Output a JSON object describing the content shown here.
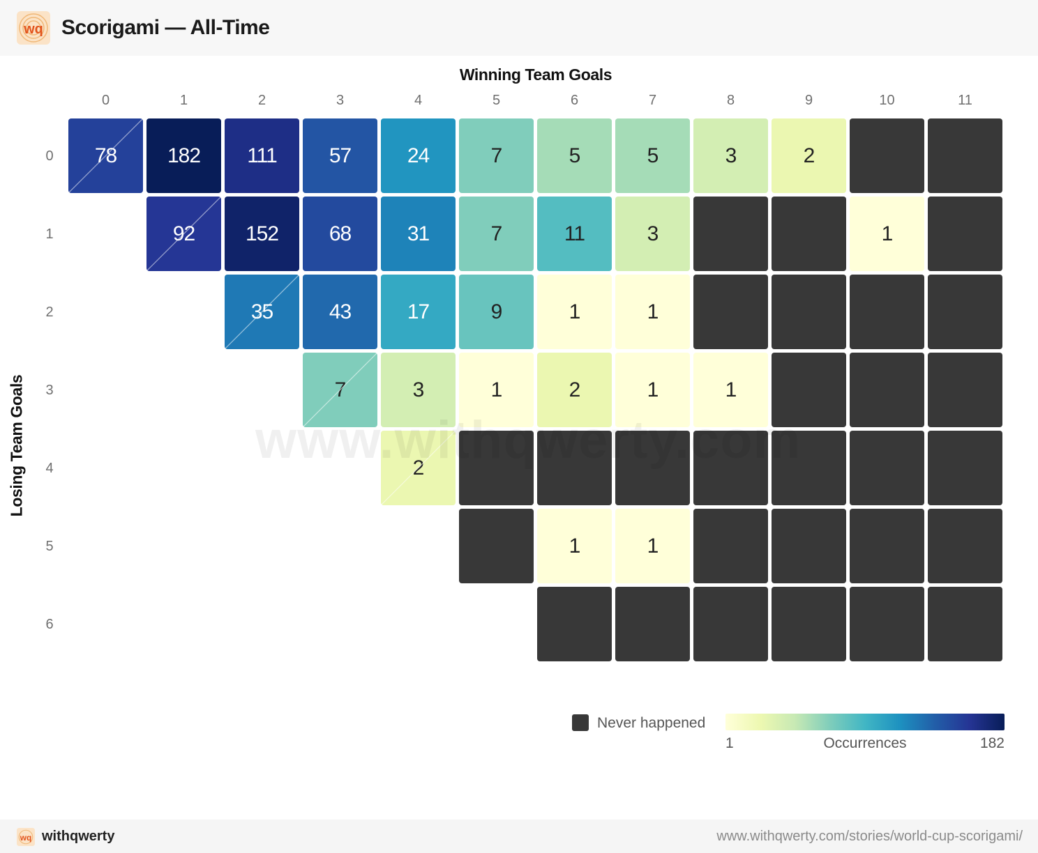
{
  "header": {
    "logo_text": "wq",
    "title": "Scorigami — All-Time"
  },
  "watermark": "www.withqwerty.com",
  "legend": {
    "never_label": "Never happened",
    "min_label": "1",
    "max_label": "182",
    "scale_label": "Occurrences",
    "never_color": "#383838"
  },
  "footer": {
    "logo_text": "wq",
    "brand": "withqwerty",
    "url": "www.withqwerty.com/stories/world-cup-scorigami/"
  },
  "chart_data": {
    "type": "heatmap",
    "title": "Scorigami — All-Time",
    "xlabel": "Winning Team Goals",
    "ylabel": "Losing Team Goals",
    "x": [
      "0",
      "1",
      "2",
      "3",
      "4",
      "5",
      "6",
      "7",
      "8",
      "9",
      "10",
      "11"
    ],
    "y": [
      "0",
      "1",
      "2",
      "3",
      "4",
      "5",
      "6"
    ],
    "colorscale": "YlGnBu",
    "color_range": [
      1,
      182
    ],
    "never_color": "#383838",
    "draws_marked_with_diagonal": true,
    "values": [
      [
        78,
        182,
        111,
        57,
        24,
        7,
        5,
        5,
        3,
        2,
        0,
        0
      ],
      [
        null,
        92,
        152,
        68,
        31,
        7,
        11,
        3,
        0,
        0,
        1,
        0
      ],
      [
        null,
        null,
        35,
        43,
        17,
        9,
        1,
        1,
        0,
        0,
        0,
        0
      ],
      [
        null,
        null,
        null,
        7,
        3,
        1,
        2,
        1,
        1,
        0,
        0,
        0
      ],
      [
        null,
        null,
        null,
        null,
        2,
        0,
        0,
        0,
        0,
        0,
        0,
        0
      ],
      [
        null,
        null,
        null,
        null,
        null,
        0,
        1,
        1,
        0,
        0,
        0,
        0
      ],
      [
        null,
        null,
        null,
        null,
        null,
        null,
        0,
        0,
        0,
        0,
        0,
        0
      ]
    ],
    "value_legend": "0 = never happened (dark cell); null = impossible score (no cell)"
  }
}
